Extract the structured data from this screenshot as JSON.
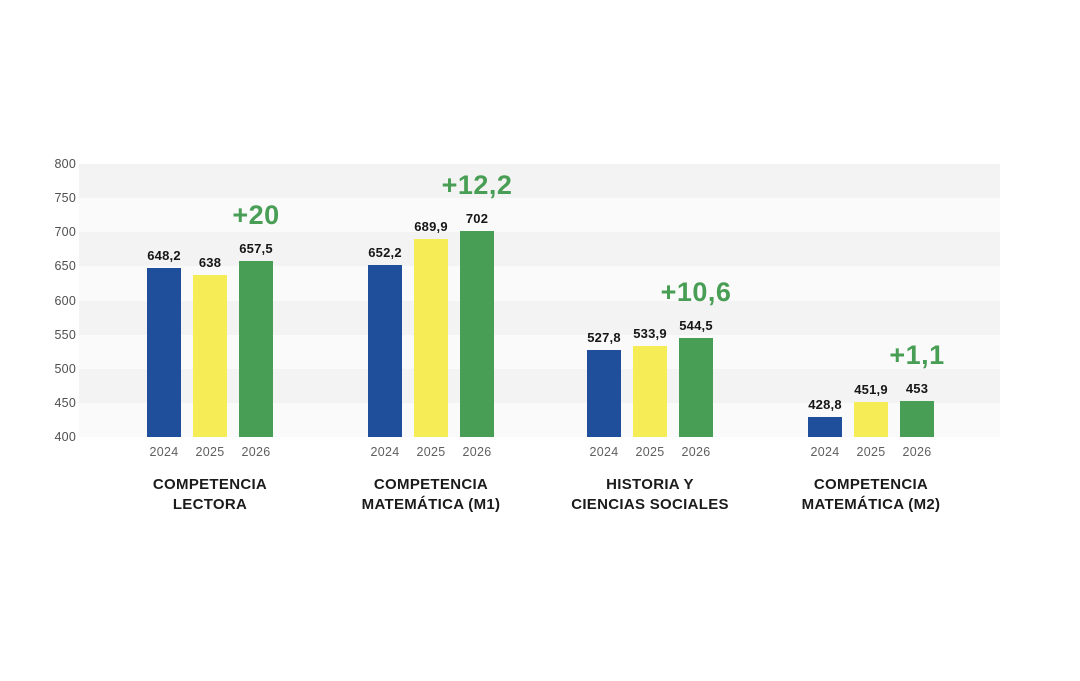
{
  "chart_data": {
    "type": "bar",
    "title": "",
    "xlabel": "",
    "ylabel": "",
    "y_axis": {
      "min": 400,
      "max": 800,
      "step": 50,
      "tick_labels": [
        "800",
        "750",
        "700",
        "650",
        "600",
        "550",
        "500",
        "450",
        "400"
      ]
    },
    "grid": "alternating horizontal bands, no axis lines",
    "legend": null,
    "x_years": [
      "2024",
      "2025",
      "2026"
    ],
    "bar_colors": {
      "2024": "#1f4e9a",
      "2025": "#f6ec55",
      "2026": "#499e55"
    },
    "delta_color": "#499e55",
    "groups": [
      {
        "name": "COMPETENCIA LECTORA",
        "name_lines": [
          "COMPETENCIA",
          "LECTORA"
        ],
        "delta_label": "+20",
        "bars": [
          {
            "year": "2024",
            "value": 648.2,
            "value_label": "648,2"
          },
          {
            "year": "2025",
            "value": 638,
            "value_label": "638"
          },
          {
            "year": "2026",
            "value": 657.5,
            "value_label": "657,5"
          }
        ]
      },
      {
        "name": "COMPETENCIA MATEMÁTICA (M1)",
        "name_lines": [
          "COMPETENCIA",
          "MATEMÁTICA (M1)"
        ],
        "delta_label": "+12,2",
        "bars": [
          {
            "year": "2024",
            "value": 652.2,
            "value_label": "652,2"
          },
          {
            "year": "2025",
            "value": 689.9,
            "value_label": "689,9"
          },
          {
            "year": "2026",
            "value": 702,
            "value_label": "702"
          }
        ]
      },
      {
        "name": "HISTORIA Y CIENCIAS SOCIALES",
        "name_lines": [
          "HISTORIA Y",
          "CIENCIAS SOCIALES"
        ],
        "delta_label": "+10,6",
        "bars": [
          {
            "year": "2024",
            "value": 527.8,
            "value_label": "527,8"
          },
          {
            "year": "2025",
            "value": 533.9,
            "value_label": "533,9"
          },
          {
            "year": "2026",
            "value": 544.5,
            "value_label": "544,5"
          }
        ]
      },
      {
        "name": "COMPETENCIA MATEMÁTICA (M2)",
        "name_lines": [
          "COMPETENCIA",
          "MATEMÁTICA (M2)"
        ],
        "delta_label": "+1,1",
        "bars": [
          {
            "year": "2024",
            "value": 428.8,
            "value_label": "428,8"
          },
          {
            "year": "2025",
            "value": 451.9,
            "value_label": "451,9"
          },
          {
            "year": "2026",
            "value": 453,
            "value_label": "453"
          }
        ]
      }
    ]
  },
  "styles": {
    "background": "#ffffff",
    "band_gray": "#f3f3f3",
    "band_light": "#fafafa",
    "tick_color": "#4f4f4f",
    "year_color": "#5f5f5f",
    "value_color": "#161616",
    "category_color": "#1b1b1b"
  }
}
